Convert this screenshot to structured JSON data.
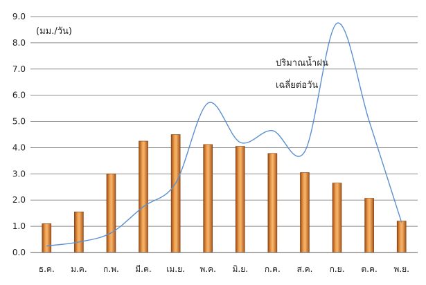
{
  "chart_data": {
    "type": "bar",
    "categories": [
      "ธ.ค.",
      "ม.ค.",
      "ก.พ.",
      "มี.ค.",
      "เม.ย.",
      "พ.ค.",
      "มิ.ย.",
      "ก.ค.",
      "ส.ค.",
      "ก.ย.",
      "ต.ค.",
      "พ.ย."
    ],
    "series": [
      {
        "type": "bar",
        "values": [
          1.1,
          1.55,
          3.0,
          4.25,
          4.5,
          4.12,
          4.05,
          3.78,
          3.05,
          2.65,
          2.07,
          1.2
        ],
        "color": "#E8862E"
      },
      {
        "name": "ปริมาณน้ำฝนเฉลี่ยต่อวัน",
        "type": "line",
        "values": [
          0.25,
          0.4,
          0.75,
          1.75,
          2.65,
          5.7,
          4.2,
          4.65,
          3.85,
          8.75,
          5.0,
          1.15
        ],
        "color": "#5B8FD0"
      }
    ],
    "ylim": [
      0,
      9
    ],
    "yticks": [
      "0.0",
      "1.0",
      "2.0",
      "3.0",
      "4.0",
      "5.0",
      "6.0",
      "7.0",
      "8.0",
      "9.0"
    ],
    "unit_label": "(มม./วัน)",
    "annotation": [
      "ปริมาณน้ำฝน",
      "เฉลี่ยต่อวัน"
    ],
    "grid": true
  }
}
